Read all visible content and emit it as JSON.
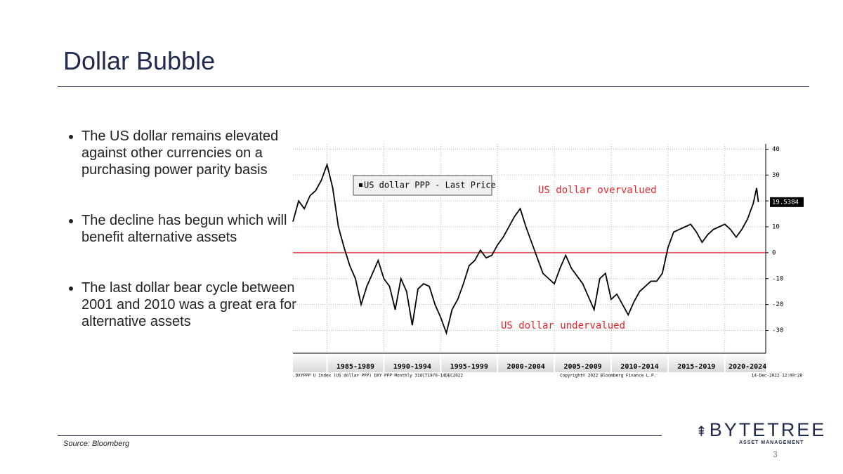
{
  "slide": {
    "title": "Dollar Bubble",
    "bullets": [
      "The US dollar remains elevated against other currencies on a purchasing power parity basis",
      "The decline has begun which will benefit alternative assets",
      "The last dollar bear cycle between 2001 and 2010 was a great era for alternative assets"
    ],
    "source": "Source: Bloomberg",
    "logo": "BYTETREE",
    "logo_subtitle": "ASSET MANAGEMENT",
    "page_number": "3"
  },
  "chart_data": {
    "type": "line",
    "series": [
      {
        "name": "US dollar PPP - Last Price",
        "color": "#000000",
        "x": [
          1982,
          1982.5,
          1983,
          1983.5,
          1984,
          1984.5,
          1985,
          1985.5,
          1986,
          1986.5,
          1987,
          1987.5,
          1988,
          1988.5,
          1989,
          1989.5,
          1990,
          1990.5,
          1991,
          1991.5,
          1992,
          1992.5,
          1993,
          1993.5,
          1994,
          1994.5,
          1995,
          1995.5,
          1996,
          1996.5,
          1997,
          1997.5,
          1998,
          1998.5,
          1999,
          1999.5,
          2000,
          2000.5,
          2001,
          2001.5,
          2002,
          2002.5,
          2003,
          2003.5,
          2004,
          2004.5,
          2005,
          2005.5,
          2006,
          2006.5,
          2007,
          2007.5,
          2008,
          2008.5,
          2009,
          2009.5,
          2010,
          2010.5,
          2011,
          2011.5,
          2012,
          2012.5,
          2013,
          2013.5,
          2014,
          2014.5,
          2015,
          2015.5,
          2016,
          2016.5,
          2017,
          2017.5,
          2018,
          2018.5,
          2019,
          2019.5,
          2020,
          2020.5,
          2021,
          2021.5,
          2022,
          2022.5,
          2022.8,
          2022.95
        ],
        "values": [
          12,
          20,
          17,
          22,
          24,
          28,
          34,
          25,
          10,
          2,
          -5,
          -10,
          -20,
          -13,
          -8,
          -3,
          -10,
          -13,
          -22,
          -10,
          -15,
          -28,
          -14,
          -12,
          -13,
          -20,
          -25,
          -31,
          -22,
          -18,
          -12,
          -5,
          -3,
          1,
          -2,
          -1,
          3,
          6,
          10,
          14,
          17,
          10,
          4,
          -2,
          -8,
          -10,
          -12,
          -6,
          -1,
          -6,
          -9,
          -12,
          -17,
          -22,
          -10,
          -8,
          -18,
          -16,
          -20,
          -24,
          -19,
          -15,
          -13,
          -11,
          -11,
          -8,
          2,
          8,
          9,
          10,
          11,
          8,
          4,
          7,
          9,
          10,
          11,
          9,
          6,
          9,
          13,
          19,
          25,
          19.5384
        ]
      }
    ],
    "xlim": [
      1982,
      2023.6
    ],
    "xticks": [
      {
        "value": 1987.5,
        "label": "1985-1989"
      },
      {
        "value": 1992.5,
        "label": "1990-1994"
      },
      {
        "value": 1997.5,
        "label": "1995-1999"
      },
      {
        "value": 2002.5,
        "label": "2000-2004"
      },
      {
        "value": 2007.5,
        "label": "2005-2009"
      },
      {
        "value": 2012.5,
        "label": "2010-2014"
      },
      {
        "value": 2017.5,
        "label": "2015-2019"
      },
      {
        "value": 2022,
        "label": "2020-2024"
      }
    ],
    "band_edges": [
      1985,
      1990,
      1995,
      2000,
      2005,
      2010,
      2015,
      2020
    ],
    "ylim": [
      -38,
      42
    ],
    "yticks": [
      40,
      30,
      20,
      10,
      0,
      {
        "value": -10,
        "label": "-10"
      },
      {
        "value": -20,
        "label": "-20"
      },
      {
        "value": -30,
        "label": "-30"
      }
    ],
    "grid": true,
    "reference_line": {
      "value": 0,
      "color": "#e8242a"
    },
    "annotations": [
      "US dollar overvalued",
      "US dollar undervalued"
    ],
    "annotation_color": "#e8242a",
    "legend": "upper left",
    "footer": [
      ".DXYPPP U Index (US dollar PPP) DXY PPP  Monthly 31OCT1970-14DEC2022",
      "Copyright© 2022 Bloomberg Finance L.P.",
      "14-Dec-2022 12:09:28"
    ]
  }
}
